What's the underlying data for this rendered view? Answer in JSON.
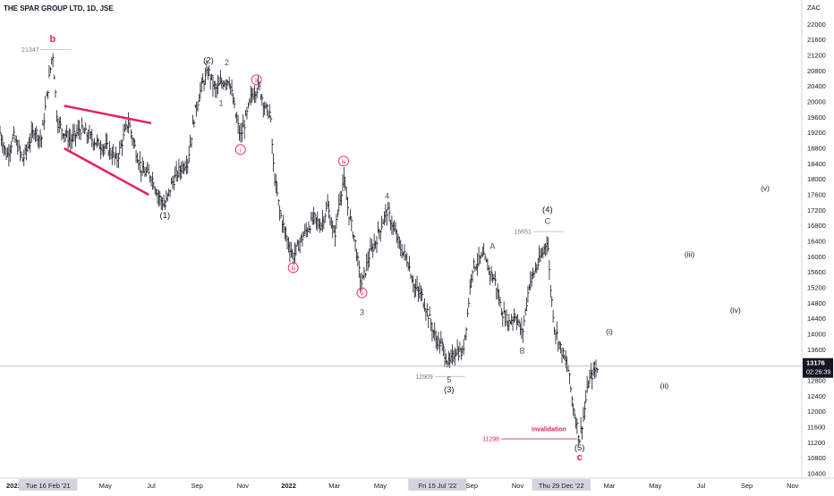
{
  "symbol_title": "THE SPAR GROUP LTD, 1D, JSE",
  "currency": "ZAC",
  "last_price": {
    "value": "13176",
    "countdown": "02:26:39",
    "price": 13176
  },
  "colors": {
    "candles": "#131722",
    "wave_red": "#e91e63",
    "wave_blue": "#4a4e69",
    "axis_bg": "#d1d4dc",
    "last_price_box": "#131722"
  },
  "chart_data": {
    "type": "line",
    "description_series": "daily price bars",
    "ylim": [
      10400,
      22400
    ],
    "y_ticks": [
      22000,
      21600,
      21200,
      20800,
      20400,
      20000,
      19600,
      19200,
      18800,
      18400,
      18000,
      17600,
      17200,
      16800,
      16400,
      16000,
      15600,
      15200,
      14800,
      14400,
      14000,
      13600,
      13200,
      12800,
      12400,
      12000,
      11600,
      11200,
      10800,
      10400
    ],
    "x_ticks": [
      "2021",
      "Tue 16 Feb '21",
      "May",
      "Jul",
      "Sep",
      "Nov",
      "2022",
      "Mar",
      "May",
      "Fri 15 Jul '22",
      "Sep",
      "Nov",
      "Thu 29 Dec '22",
      "Mar",
      "May",
      "Jul",
      "Sep",
      "Nov"
    ],
    "x_tick_months": [
      0,
      1.5,
      4,
      6,
      8,
      10,
      12,
      14,
      16,
      18.5,
      20,
      22,
      23.9,
      26,
      28,
      30,
      32,
      34
    ],
    "x_range_months": [
      -0.6,
      34.4
    ],
    "price_path": [
      [
        -0.6,
        19200
      ],
      [
        -0.3,
        18600
      ],
      [
        0,
        19100
      ],
      [
        0.4,
        18500
      ],
      [
        0.9,
        19300
      ],
      [
        1.2,
        19000
      ],
      [
        1.5,
        20400
      ],
      [
        1.7,
        21300
      ],
      [
        1.9,
        19500
      ],
      [
        2.2,
        19200
      ],
      [
        2.5,
        19000
      ],
      [
        2.9,
        19300
      ],
      [
        3.3,
        19100
      ],
      [
        3.7,
        18900
      ],
      [
        4.1,
        18800
      ],
      [
        4.5,
        18500
      ],
      [
        5.0,
        19500
      ],
      [
        5.3,
        18800
      ],
      [
        5.6,
        18200
      ],
      [
        6.0,
        18100
      ],
      [
        6.3,
        17600
      ],
      [
        6.6,
        17300
      ],
      [
        6.9,
        17900
      ],
      [
        7.2,
        18200
      ],
      [
        7.6,
        18500
      ],
      [
        7.9,
        19700
      ],
      [
        8.2,
        20400
      ],
      [
        8.5,
        20800
      ],
      [
        8.8,
        20300
      ],
      [
        9.1,
        20500
      ],
      [
        9.4,
        20600
      ],
      [
        9.7,
        19600
      ],
      [
        9.9,
        19100
      ],
      [
        10.1,
        19500
      ],
      [
        10.4,
        20200
      ],
      [
        10.7,
        20400
      ],
      [
        11.0,
        19800
      ],
      [
        11.2,
        19700
      ],
      [
        11.35,
        18200
      ],
      [
        11.6,
        17200
      ],
      [
        11.9,
        16500
      ],
      [
        12.2,
        16000
      ],
      [
        12.5,
        16400
      ],
      [
        12.8,
        16700
      ],
      [
        13.1,
        17000
      ],
      [
        13.4,
        16800
      ],
      [
        13.7,
        17300
      ],
      [
        14.0,
        16500
      ],
      [
        14.2,
        17400
      ],
      [
        14.4,
        18000
      ],
      [
        14.6,
        17200
      ],
      [
        14.9,
        16400
      ],
      [
        15.1,
        15500
      ],
      [
        15.2,
        15300
      ],
      [
        15.5,
        16000
      ],
      [
        15.8,
        16400
      ],
      [
        16.1,
        16900
      ],
      [
        16.3,
        17200
      ],
      [
        16.6,
        16700
      ],
      [
        16.9,
        16200
      ],
      [
        17.2,
        15900
      ],
      [
        17.5,
        15200
      ],
      [
        17.8,
        15000
      ],
      [
        18.1,
        14500
      ],
      [
        18.4,
        13900
      ],
      [
        18.7,
        13700
      ],
      [
        19.0,
        13200
      ],
      [
        19.3,
        13600
      ],
      [
        19.6,
        13500
      ],
      [
        19.8,
        14500
      ],
      [
        20.0,
        15700
      ],
      [
        20.3,
        15900
      ],
      [
        20.5,
        16000
      ],
      [
        20.8,
        15600
      ],
      [
        21.0,
        15400
      ],
      [
        21.3,
        14600
      ],
      [
        21.6,
        14300
      ],
      [
        21.9,
        14500
      ],
      [
        22.2,
        14000
      ],
      [
        22.5,
        15300
      ],
      [
        22.8,
        15700
      ],
      [
        23.1,
        16100
      ],
      [
        23.3,
        16500
      ],
      [
        23.4,
        15400
      ],
      [
        23.6,
        14200
      ],
      [
        23.9,
        13600
      ],
      [
        24.2,
        13100
      ],
      [
        24.4,
        12200
      ],
      [
        24.6,
        11600
      ],
      [
        24.7,
        11300
      ],
      [
        24.9,
        12000
      ],
      [
        25.1,
        12800
      ],
      [
        25.3,
        13000
      ],
      [
        25.5,
        13176
      ]
    ],
    "levels": [
      {
        "label": "21347",
        "value": 21347
      },
      {
        "label": "16651",
        "value": 16651
      },
      {
        "label": "12909",
        "value": 12909
      },
      {
        "label": "11298",
        "value": 11298
      }
    ]
  },
  "annotations": {
    "b": {
      "text": "b",
      "x": 1.7,
      "y": 21550
    },
    "w1": {
      "text": "(1)",
      "x": 6.6,
      "y": 17000
    },
    "w2": {
      "text": "(2)",
      "x": 8.5,
      "y": 21000
    },
    "w2b": {
      "text": "2",
      "x": 9.3,
      "y": 20950
    },
    "w1s": {
      "text": "1",
      "x": 9.05,
      "y": 19900
    },
    "ii": {
      "text": "ii",
      "x": 10.6,
      "y": 20500
    },
    "i": {
      "text": "i",
      "x": 9.9,
      "y": 18700
    },
    "iv": {
      "text": "iv",
      "x": 14.4,
      "y": 18400
    },
    "w4s": {
      "text": "4",
      "x": 16.3,
      "y": 17500
    },
    "iii": {
      "text": "iii",
      "x": 12.2,
      "y": 15650
    },
    "v": {
      "text": "v",
      "x": 15.2,
      "y": 15000
    },
    "w3s": {
      "text": "3",
      "x": 15.2,
      "y": 14500
    },
    "w5s": {
      "text": "5",
      "x": 19.0,
      "y": 12750
    },
    "w3": {
      "text": "(3)",
      "x": 19.0,
      "y": 12500
    },
    "A": {
      "text": "A",
      "x": 20.9,
      "y": 16200
    },
    "B": {
      "text": "B",
      "x": 22.2,
      "y": 13500
    },
    "C": {
      "text": "C",
      "x": 23.3,
      "y": 16850
    },
    "w4": {
      "text": "(4)",
      "x": 23.3,
      "y": 17150
    },
    "w5": {
      "text": "(5)",
      "x": 24.7,
      "y": 11000
    },
    "c": {
      "text": "c",
      "x": 24.7,
      "y": 10750
    },
    "invalidation": {
      "text": "invalidation",
      "x": 22.6,
      "y": 11500
    },
    "pi": {
      "text": "(i)",
      "x": 26.0,
      "y": 14000
    },
    "pii": {
      "text": "(ii)",
      "x": 28.4,
      "y": 12600
    },
    "piii": {
      "text": "(iii)",
      "x": 29.5,
      "y": 16000
    },
    "piv": {
      "text": "(iv)",
      "x": 31.5,
      "y": 14550
    },
    "pv": {
      "text": "(v)",
      "x": 32.8,
      "y": 17700
    }
  }
}
